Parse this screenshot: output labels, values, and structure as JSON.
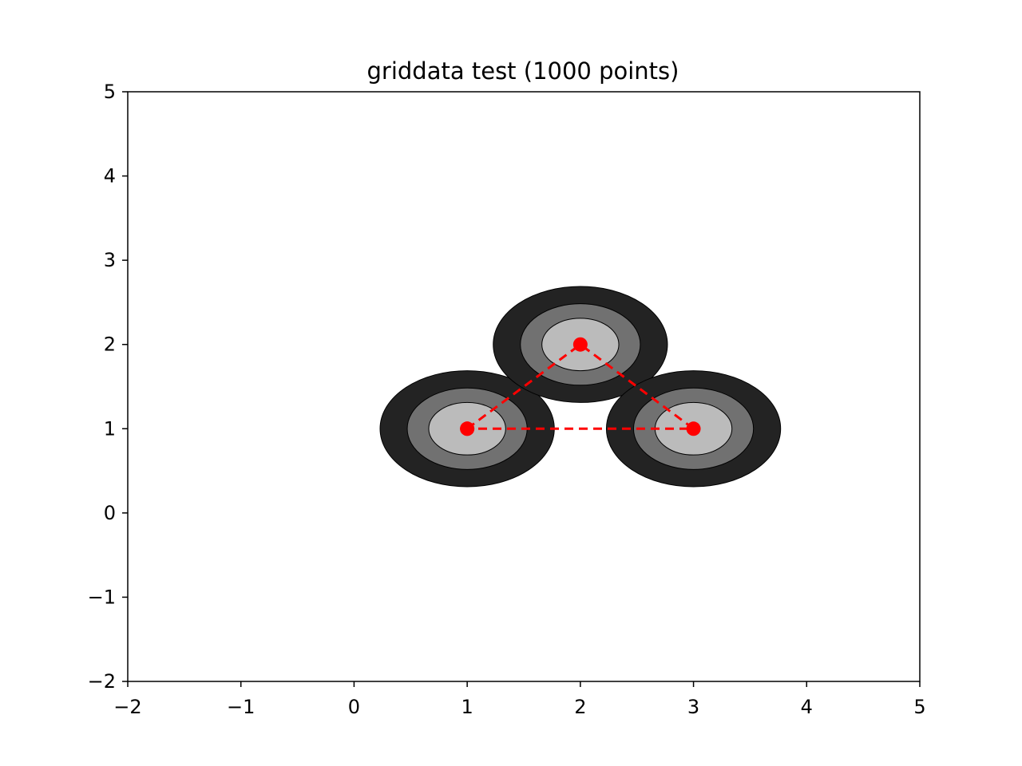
{
  "chart_data": {
    "type": "contour",
    "title": "griddata test (1000 points)",
    "xlabel": "",
    "ylabel": "",
    "xlim": [
      -2,
      5
    ],
    "ylim": [
      -2,
      5
    ],
    "xticks": [
      -2,
      -1,
      0,
      1,
      2,
      3,
      4,
      5
    ],
    "yticks": [
      -2,
      -1,
      0,
      1,
      2,
      3,
      4,
      5
    ],
    "xtick_labels": [
      "−2",
      "−1",
      "0",
      "1",
      "2",
      "3",
      "4",
      "5"
    ],
    "ytick_labels": [
      "−2",
      "−1",
      "0",
      "1",
      "2",
      "3",
      "4",
      "5"
    ],
    "grid": false,
    "contour_centers": [
      {
        "x": 1,
        "y": 1
      },
      {
        "x": 2,
        "y": 2
      },
      {
        "x": 3,
        "y": 1
      }
    ],
    "contour_levels": [
      {
        "radius_x": 0.77,
        "radius_y": 0.84,
        "color": "#232323"
      },
      {
        "radius_x": 0.53,
        "radius_y": 0.59,
        "color": "#717171"
      },
      {
        "radius_x": 0.34,
        "radius_y": 0.38,
        "color": "#bbbbbb"
      }
    ],
    "series": [
      {
        "style": "dashed-line-with-markers",
        "color": "#ff0000",
        "x": [
          1,
          2,
          3,
          1
        ],
        "y": [
          1,
          2,
          1,
          1
        ]
      }
    ]
  }
}
